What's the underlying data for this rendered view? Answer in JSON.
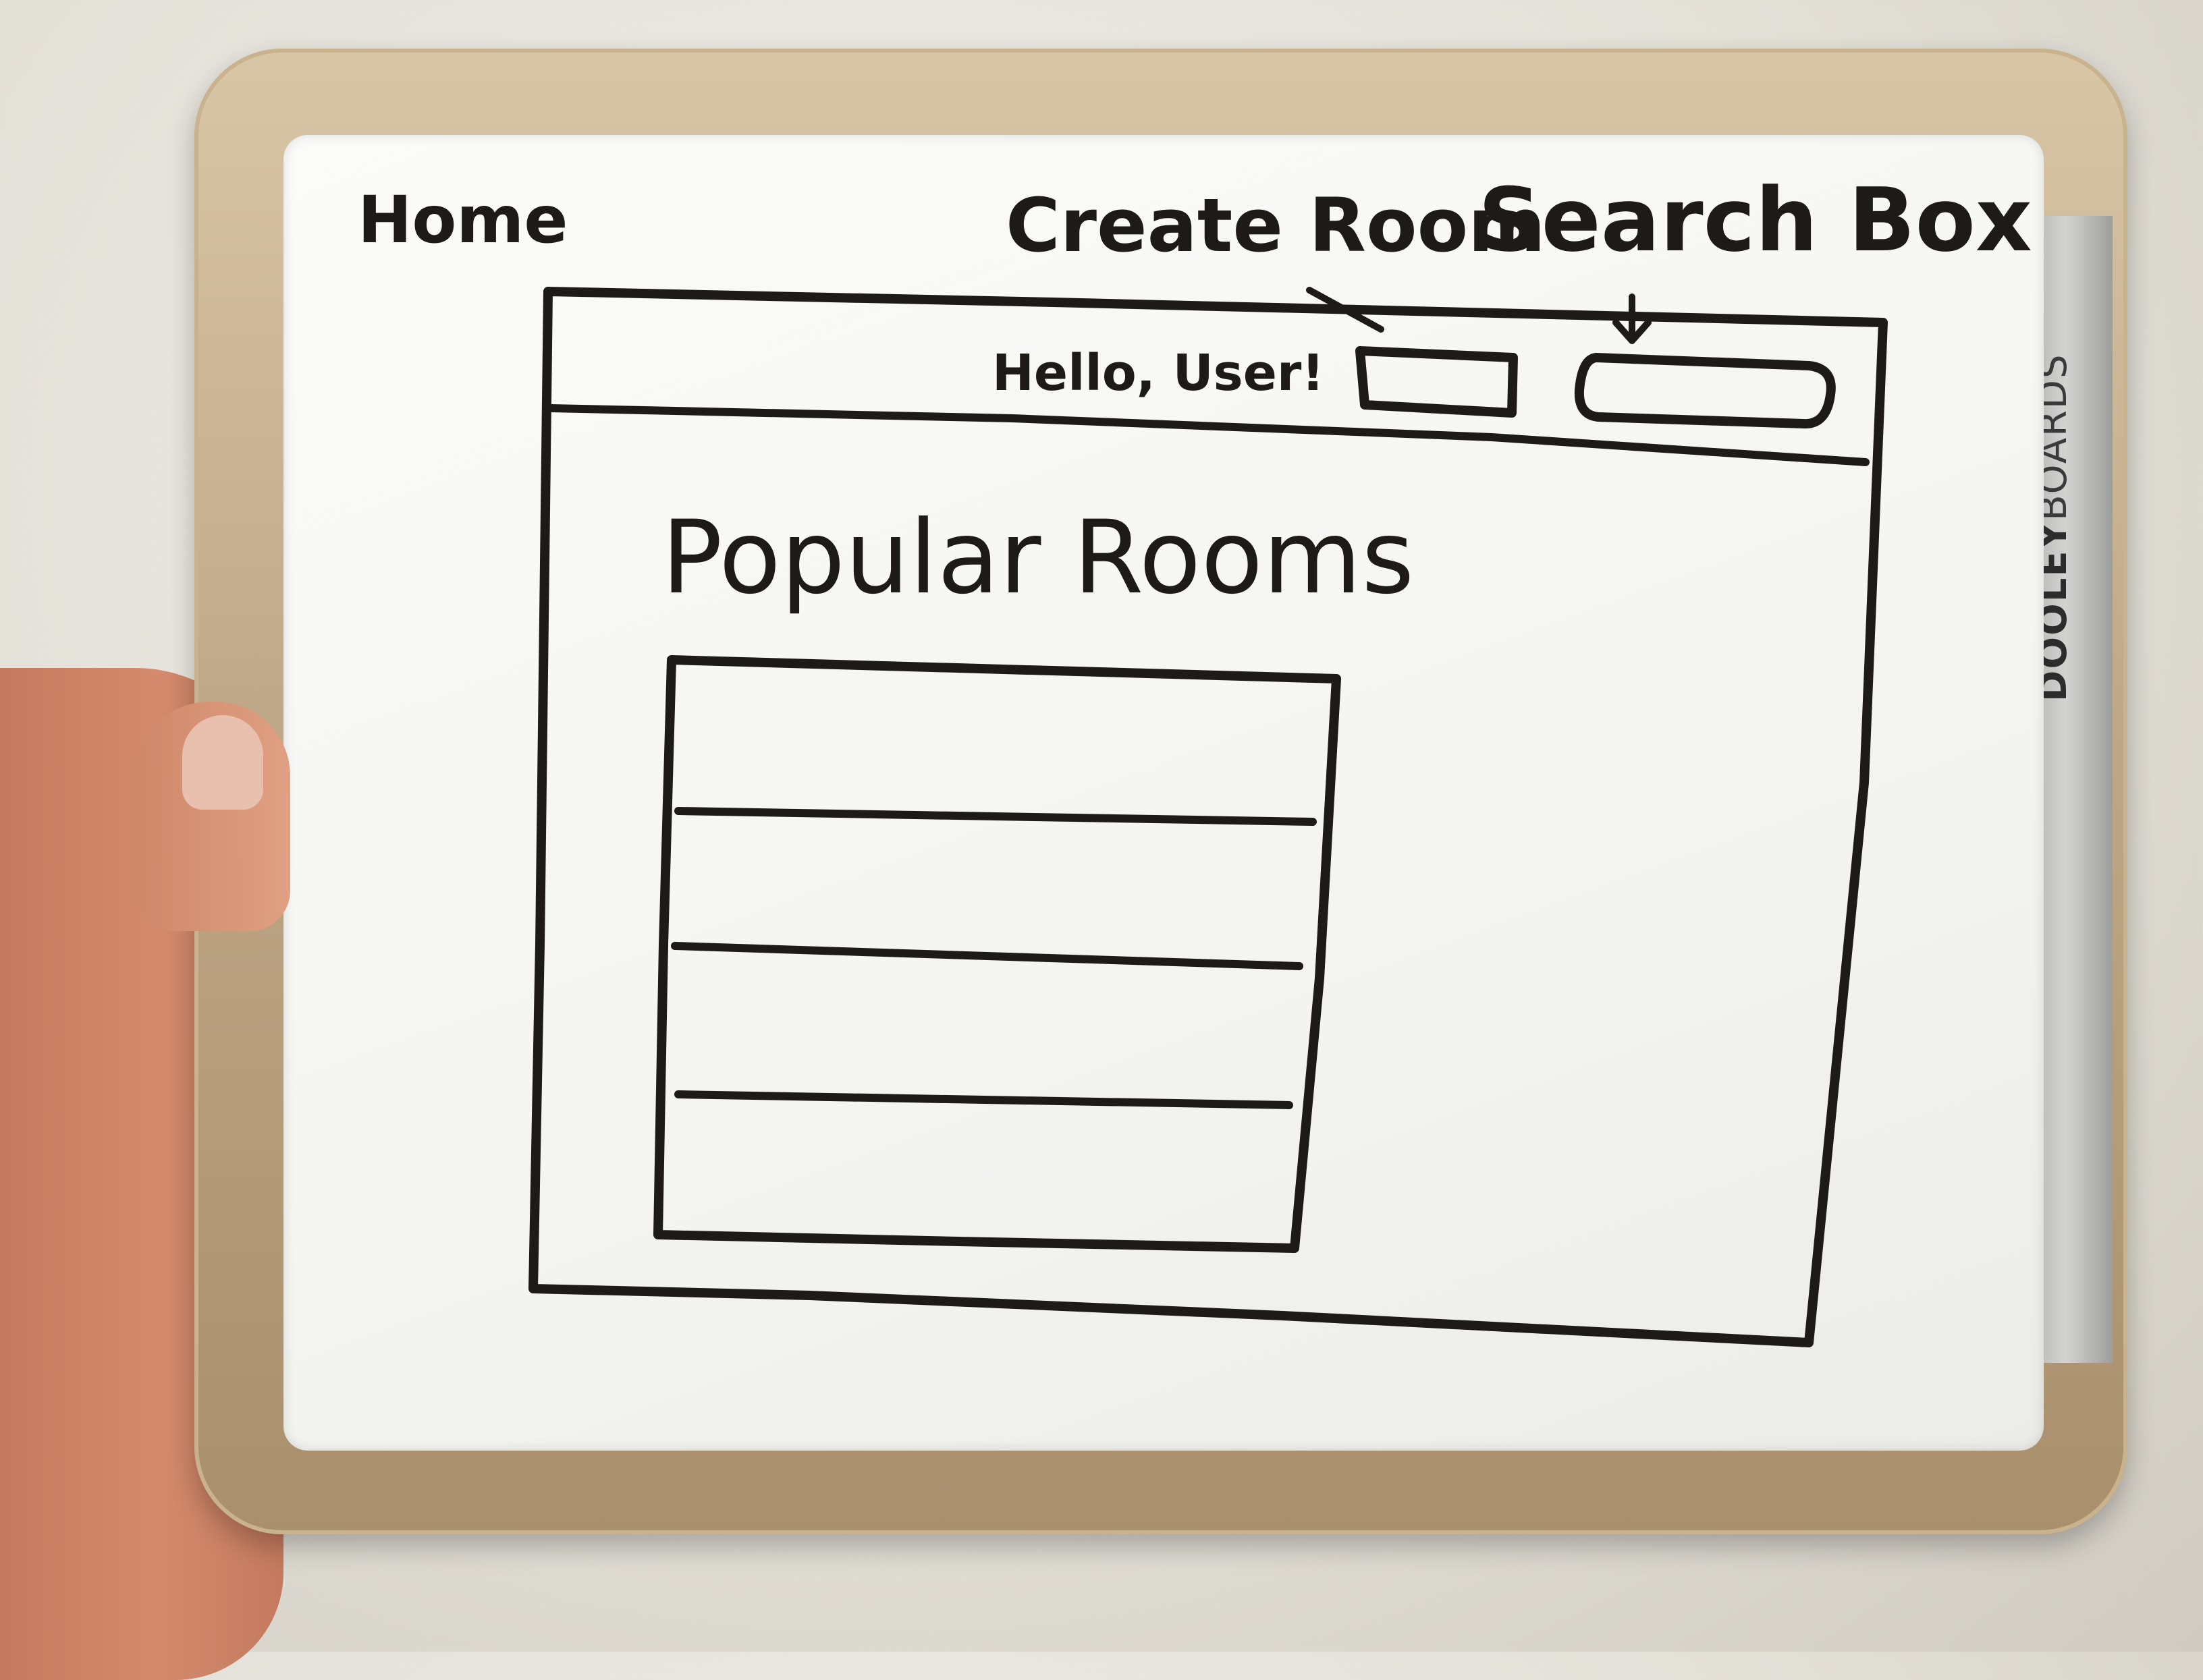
{
  "board": {
    "brand_bold": "DOOLEY",
    "brand_light": "BOARDS"
  },
  "annotations": {
    "home": "Home",
    "create_room": "Create Room",
    "search_box": "Search Box"
  },
  "wireframe": {
    "header": {
      "greeting": "Hello, User!"
    },
    "main": {
      "heading": "Popular Rooms",
      "list_rows": 4
    }
  },
  "colors": {
    "marker": "#1d1a17",
    "board": "#f6f6f3",
    "frame": "#bfa888"
  }
}
